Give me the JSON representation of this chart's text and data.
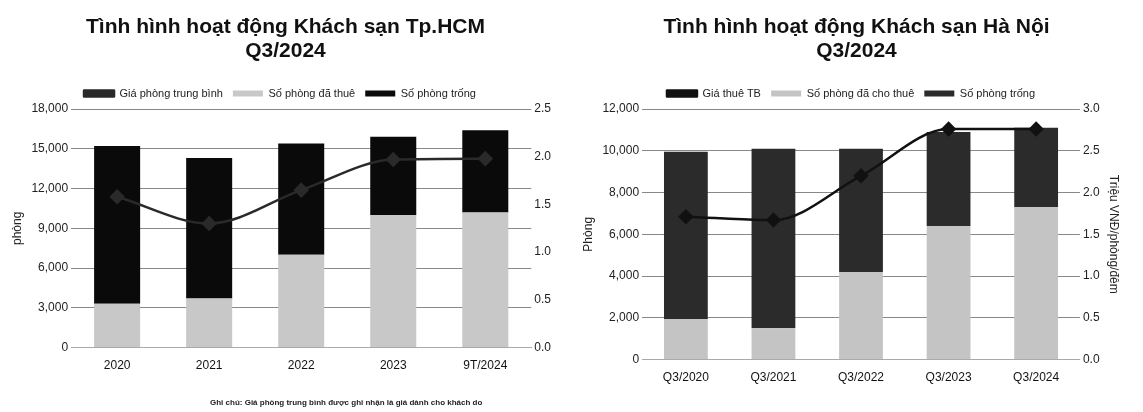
{
  "chart_data": [
    {
      "type": "bar",
      "title": "Tình hình hoạt động Khách sạn Tp.HCM Q3/2024",
      "ylabel": "phòng",
      "stacked": true,
      "grid": "y",
      "legend": "top",
      "marker": "diamond",
      "categories": [
        "2020",
        "2021",
        "2022",
        "2023",
        "9T/2024"
      ],
      "series": [
        {
          "name": "Số phòng đã thuê",
          "color": "#c8c8c8",
          "values": [
            3300,
            3700,
            7000,
            10000,
            10200
          ]
        },
        {
          "name": "Số phòng trống",
          "color": "#0a0a0a",
          "values": [
            11900,
            10600,
            8400,
            5900,
            6200
          ]
        },
        {
          "name": "Giá phòng trung bình",
          "type": "line",
          "axis": "y2",
          "color": "#2a2a2a",
          "values": [
            1.58,
            1.3,
            1.65,
            1.97,
            1.98
          ]
        }
      ],
      "ylim": [
        0,
        18000
      ],
      "yticks": [
        0,
        {
          "value": 3000,
          "label": "3,000"
        },
        {
          "value": 6000,
          "label": "6,000"
        },
        {
          "value": 9000,
          "label": "9,000"
        },
        {
          "value": 12000,
          "label": "12,000"
        },
        {
          "value": 15000,
          "label": "15,000"
        },
        {
          "value": 18000,
          "label": "18,000"
        }
      ],
      "y2lim": [
        0,
        2.5
      ],
      "y2ticks": [
        {
          "value": 0,
          "label": "0.0"
        },
        0.5,
        {
          "value": 1,
          "label": "1.0"
        },
        1.5,
        {
          "value": 2,
          "label": "2.0"
        },
        2.5
      ],
      "annotations": [
        "Ghi chú: Giá phòng trung bình được ghi nhận là giá dành cho khách do"
      ]
    },
    {
      "type": "bar",
      "title": "Tình hình hoạt động Khách sạn Hà Nội Q3/2024",
      "ylabel": "Phòng",
      "y2label": "Triệu VNĐ/phòng/đêm",
      "stacked": true,
      "grid": "y",
      "legend": "top",
      "marker": "diamond",
      "categories": [
        "Q3/2020",
        "Q3/2021",
        "Q3/2022",
        "Q3/2023",
        "Q3/2024"
      ],
      "series": [
        {
          "name": "Số phòng đã cho thuê",
          "color": "#c4c4c4",
          "values": [
            1950,
            1500,
            4200,
            6400,
            7300
          ]
        },
        {
          "name": "Số phòng trống",
          "color": "#2b2b2b",
          "values": [
            8000,
            8600,
            5900,
            4500,
            3800
          ]
        },
        {
          "name": "Giá thuê TB",
          "type": "line",
          "axis": "y2",
          "color": "#111111",
          "values": [
            1.71,
            1.67,
            2.2,
            2.76,
            2.76
          ]
        }
      ],
      "ylim": [
        0,
        12000
      ],
      "yticks": [
        0,
        {
          "value": 2000,
          "label": "2,000"
        },
        {
          "value": 4000,
          "label": "4,000"
        },
        {
          "value": 6000,
          "label": "6,000"
        },
        {
          "value": 8000,
          "label": "8,000"
        },
        {
          "value": 10000,
          "label": "10,000"
        },
        {
          "value": 12000,
          "label": "12,000"
        }
      ],
      "y2lim": [
        0,
        3
      ],
      "y2ticks": [
        {
          "value": 0,
          "label": "0.0"
        },
        0.5,
        {
          "value": 1,
          "label": "1.0"
        },
        1.5,
        {
          "value": 2,
          "label": "2.0"
        },
        2.5,
        {
          "value": 3,
          "label": "3.0"
        }
      ]
    }
  ]
}
